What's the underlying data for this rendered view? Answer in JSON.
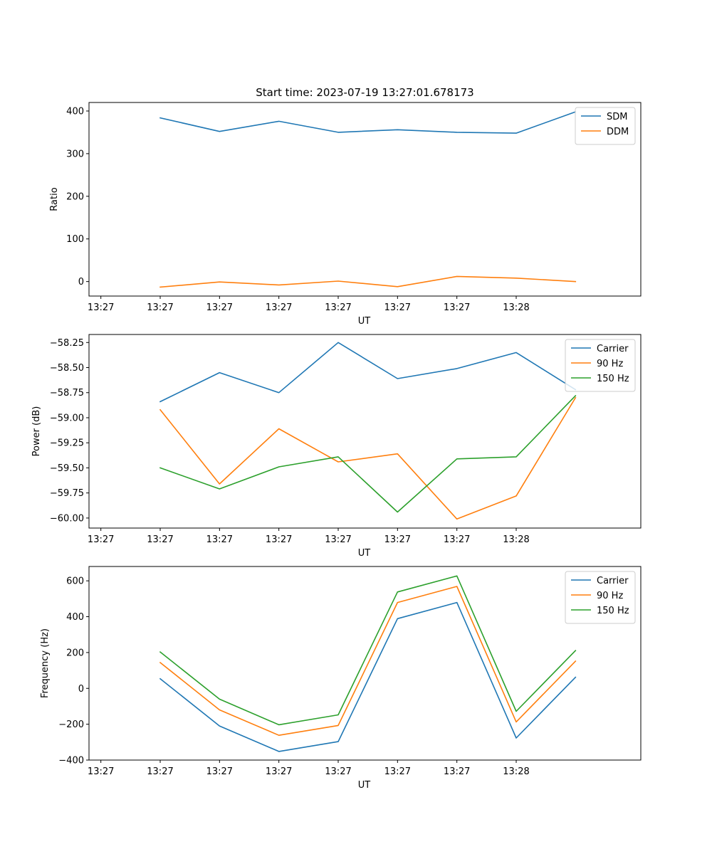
{
  "chart_data": [
    {
      "type": "line",
      "title": "Start time: 2023-07-19 13:27:01.678173",
      "xlabel": "UT",
      "ylabel": "Ratio",
      "x_tick_labels": [
        "13:27",
        "13:27",
        "13:27",
        "13:27",
        "13:27",
        "13:27",
        "13:27",
        "13:28"
      ],
      "x": [
        1,
        2,
        3,
        4,
        5,
        6,
        7,
        8
      ],
      "xlim": [
        -0.2,
        9.1
      ],
      "ylim": [
        -34,
        420
      ],
      "yticks": [
        0,
        100,
        200,
        300,
        400
      ],
      "ytick_labels": [
        "0",
        "100",
        "200",
        "300",
        "400"
      ],
      "legend": "top-right",
      "series": [
        {
          "name": "SDM",
          "color": "#1f77b4",
          "values": [
            384,
            352,
            376,
            350,
            356,
            350,
            348,
            398
          ]
        },
        {
          "name": "DDM",
          "color": "#ff7f0e",
          "values": [
            -13,
            -1,
            -8,
            1,
            -12,
            12,
            8,
            0
          ]
        }
      ]
    },
    {
      "type": "line",
      "title": "",
      "xlabel": "UT",
      "ylabel": "Power (dB)",
      "x_tick_labels": [
        "13:27",
        "13:27",
        "13:27",
        "13:27",
        "13:27",
        "13:27",
        "13:27",
        "13:28"
      ],
      "x": [
        1,
        2,
        3,
        4,
        5,
        6,
        7,
        8
      ],
      "xlim": [
        -0.2,
        9.1
      ],
      "ylim": [
        -60.1,
        -58.17
      ],
      "yticks": [
        -60.0,
        -59.75,
        -59.5,
        -59.25,
        -59.0,
        -58.75,
        -58.5,
        -58.25
      ],
      "ytick_labels": [
        "−60.00",
        "−59.75",
        "−59.50",
        "−59.25",
        "−59.00",
        "−58.75",
        "−58.50",
        "−58.25"
      ],
      "legend": "top-right",
      "series": [
        {
          "name": "Carrier",
          "color": "#1f77b4",
          "values": [
            -58.84,
            -58.55,
            -58.75,
            -58.25,
            -58.61,
            -58.51,
            -58.35,
            -58.72
          ]
        },
        {
          "name": "90 Hz",
          "color": "#ff7f0e",
          "values": [
            -58.92,
            -59.66,
            -59.11,
            -59.44,
            -59.36,
            -60.01,
            -59.78,
            -58.8
          ]
        },
        {
          "name": "150 Hz",
          "color": "#2ca02c",
          "values": [
            -59.5,
            -59.71,
            -59.49,
            -59.39,
            -59.94,
            -59.41,
            -59.39,
            -58.78
          ]
        }
      ]
    },
    {
      "type": "line",
      "title": "",
      "xlabel": "UT",
      "ylabel": "Frequency (Hz)",
      "x_tick_labels": [
        "13:27",
        "13:27",
        "13:27",
        "13:27",
        "13:27",
        "13:27",
        "13:27",
        "13:28"
      ],
      "x": [
        1,
        2,
        3,
        4,
        5,
        6,
        7,
        8
      ],
      "xlim": [
        -0.2,
        9.1
      ],
      "ylim": [
        -400,
        680
      ],
      "yticks": [
        -400,
        -200,
        0,
        200,
        400,
        600
      ],
      "ytick_labels": [
        "−400",
        "−200",
        "0",
        "200",
        "400",
        "600"
      ],
      "legend": "top-right",
      "series": [
        {
          "name": "Carrier",
          "color": "#1f77b4",
          "values": [
            54,
            -210,
            -352,
            -297,
            389,
            479,
            -277,
            62
          ]
        },
        {
          "name": "90 Hz",
          "color": "#ff7f0e",
          "values": [
            144,
            -120,
            -262,
            -207,
            479,
            569,
            -187,
            152
          ]
        },
        {
          "name": "150 Hz",
          "color": "#2ca02c",
          "values": [
            203,
            -60,
            -203,
            -148,
            538,
            627,
            -128,
            211
          ]
        }
      ]
    }
  ]
}
